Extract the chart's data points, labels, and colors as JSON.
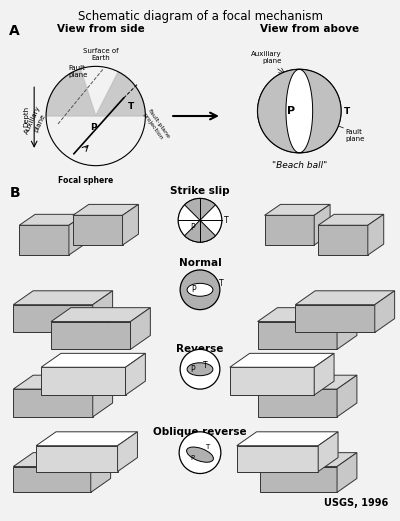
{
  "title": "Schematic diagram of a focal mechanism",
  "bg": "#f2f2f2",
  "gray": "#b8b8b8",
  "lgray": "#d8d8d8",
  "sgray": "#c8c8c8",
  "dark": "#333333",
  "white": "#ffffff",
  "black": "#000000",
  "label_A": "A",
  "label_B": "B",
  "view_side": "View from side",
  "view_above": "View from above",
  "beach_ball": "\"Beach ball\"",
  "strike_slip": "Strike slip",
  "normal": "Normal",
  "reverse": "Reverse",
  "oblique": "Oblique reverse",
  "usgs": "USGS, 1996"
}
